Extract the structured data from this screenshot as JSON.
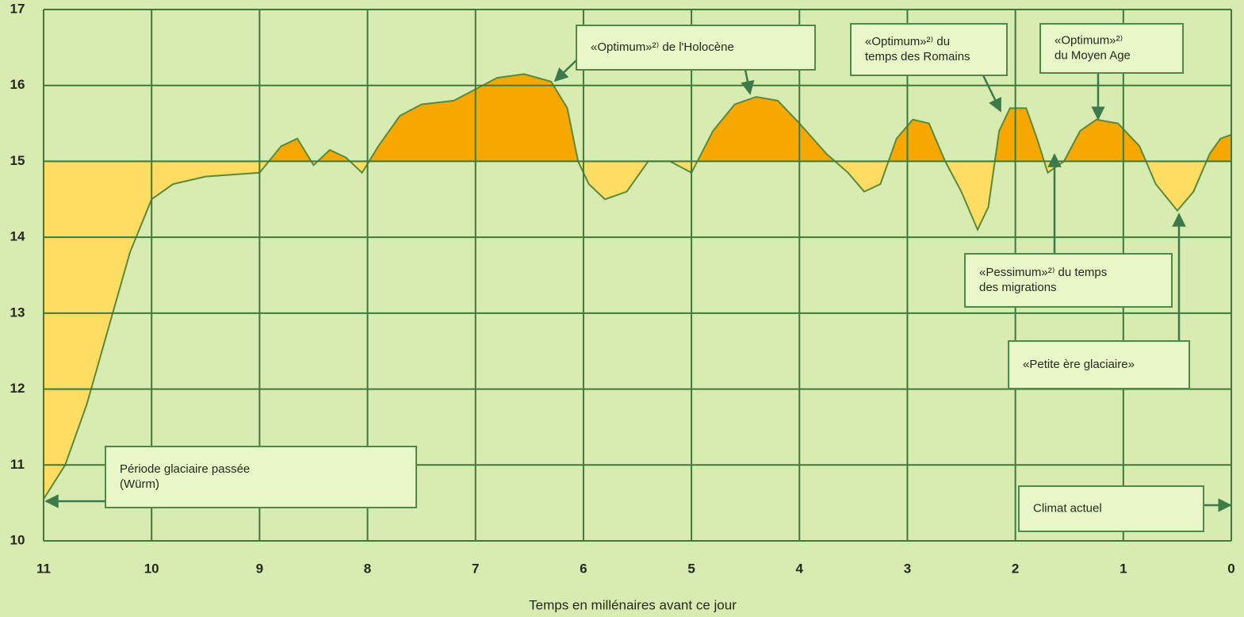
{
  "chart_data": {
    "type": "area",
    "xlabel": "Temps en millénaires avant ce jour",
    "x": [
      11,
      10.8,
      10.6,
      10.4,
      10.2,
      10.0,
      9.8,
      9.5,
      9.0,
      8.8,
      8.65,
      8.5,
      8.35,
      8.2,
      8.05,
      7.9,
      7.7,
      7.5,
      7.2,
      7.0,
      6.8,
      6.55,
      6.3,
      6.15,
      6.05,
      5.95,
      5.8,
      5.6,
      5.4,
      5.2,
      5.0,
      4.8,
      4.6,
      4.4,
      4.2,
      4.0,
      3.75,
      3.55,
      3.4,
      3.25,
      3.1,
      2.95,
      2.8,
      2.65,
      2.5,
      2.35,
      2.25,
      2.15,
      2.05,
      1.9,
      1.8,
      1.7,
      1.55,
      1.4,
      1.25,
      1.05,
      0.85,
      0.7,
      0.5,
      0.35,
      0.2,
      0.1,
      0.0
    ],
    "values": [
      10.55,
      11.0,
      11.8,
      12.8,
      13.8,
      14.5,
      14.7,
      14.8,
      14.85,
      15.2,
      15.3,
      14.95,
      15.15,
      15.05,
      14.85,
      15.2,
      15.6,
      15.75,
      15.8,
      15.95,
      16.1,
      16.15,
      16.05,
      15.7,
      15.0,
      14.7,
      14.5,
      14.6,
      15.0,
      15.0,
      14.85,
      15.4,
      15.75,
      15.85,
      15.8,
      15.5,
      15.1,
      14.85,
      14.6,
      14.7,
      15.3,
      15.55,
      15.5,
      15.0,
      14.6,
      14.1,
      14.4,
      15.4,
      15.7,
      15.7,
      15.3,
      14.85,
      15.0,
      15.4,
      15.55,
      15.5,
      15.2,
      14.7,
      14.35,
      14.6,
      15.1,
      15.3,
      15.35
    ],
    "baseline": 15,
    "color_above": "#f7a800",
    "color_below": "#ffdc62",
    "line_color": "#5a8a3c",
    "xlim": [
      11,
      0
    ],
    "xticks": [
      11,
      10,
      9,
      8,
      7,
      6,
      5,
      4,
      3,
      2,
      1,
      0
    ],
    "ylim": [
      10,
      17
    ],
    "yticks": [
      10,
      11,
      12,
      13,
      14,
      15,
      16,
      17
    ],
    "grid": true,
    "annotations": [
      {
        "lines": [
          "«Optimum»²⁾ de l'Holocène"
        ]
      },
      {
        "lines": [
          "«Optimum»²⁾ du",
          "temps des Romains"
        ]
      },
      {
        "lines": [
          "«Optimum»²⁾",
          "du Moyen Age"
        ]
      },
      {
        "lines": [
          "«Pessimum»²⁾ du temps",
          "des migrations"
        ]
      },
      {
        "lines": [
          "«Petite ère glaciaire»"
        ]
      },
      {
        "lines": [
          "Période glaciaire passée",
          "(Würm)"
        ]
      },
      {
        "lines": [
          "Climat actuel"
        ]
      }
    ]
  }
}
